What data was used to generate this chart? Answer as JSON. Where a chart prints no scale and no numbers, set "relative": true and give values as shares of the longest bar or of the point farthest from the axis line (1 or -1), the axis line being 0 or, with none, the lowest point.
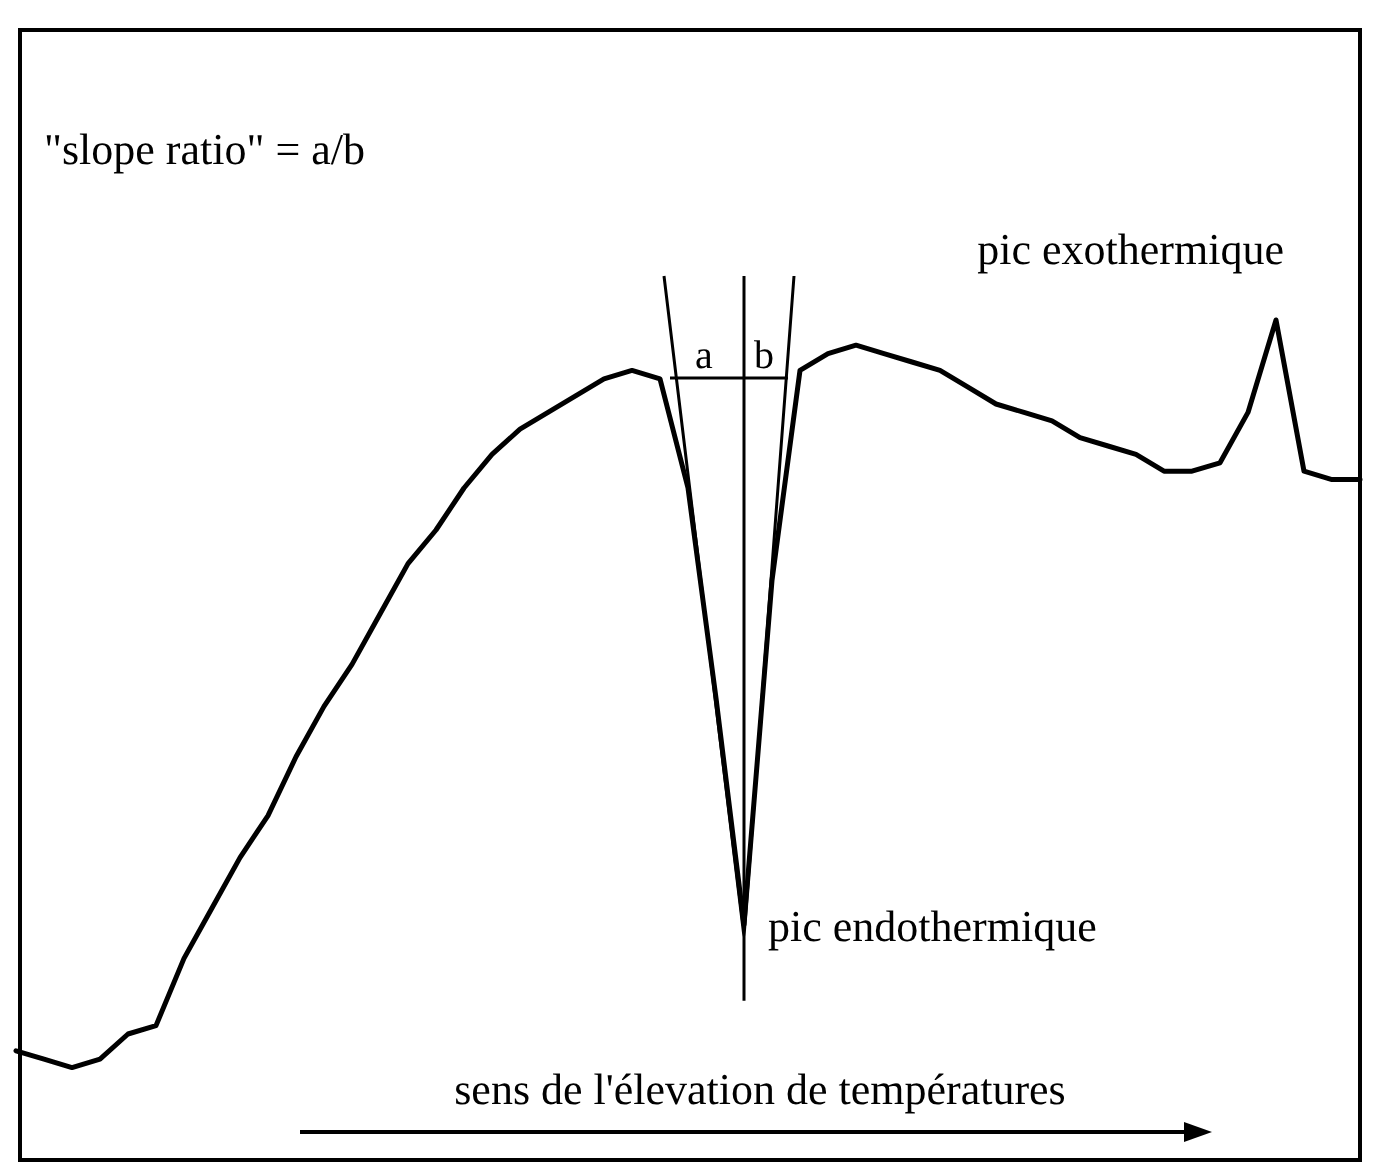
{
  "chart_data": {
    "type": "line",
    "relative": true,
    "title": "\"slope ratio\" = a/b",
    "xlabel": "sens de l'élevation de températures",
    "annotations": [
      "a",
      "b",
      "pic exothermique",
      "pic endothermique"
    ],
    "categories": [
      null,
      null,
      null,
      null,
      null,
      null,
      null,
      null,
      null,
      null,
      null,
      null,
      null,
      null,
      null,
      null,
      null,
      null,
      null,
      null,
      null,
      null,
      null,
      null,
      null,
      null,
      null,
      null,
      null,
      null,
      null,
      null,
      null,
      null,
      null,
      null,
      null,
      null,
      null,
      null,
      null,
      null,
      null,
      null,
      null,
      null,
      null,
      null,
      null
    ],
    "color": "#000000",
    "values": [
      0.13,
      0.12,
      0.11,
      0.12,
      0.15,
      0.16,
      0.24,
      0.3,
      0.36,
      0.41,
      0.48,
      0.54,
      0.59,
      0.65,
      0.71,
      0.75,
      0.8,
      0.84,
      0.87,
      0.89,
      0.91,
      0.93,
      0.94,
      0.93,
      0.8,
      0.55,
      0.28,
      0.69,
      0.94,
      0.96,
      0.97,
      0.96,
      0.95,
      0.94,
      0.92,
      0.9,
      0.89,
      0.88,
      0.86,
      0.85,
      0.84,
      0.82,
      0.82,
      0.83,
      0.89,
      1,
      0.82,
      0.81,
      0.81
    ]
  }
}
